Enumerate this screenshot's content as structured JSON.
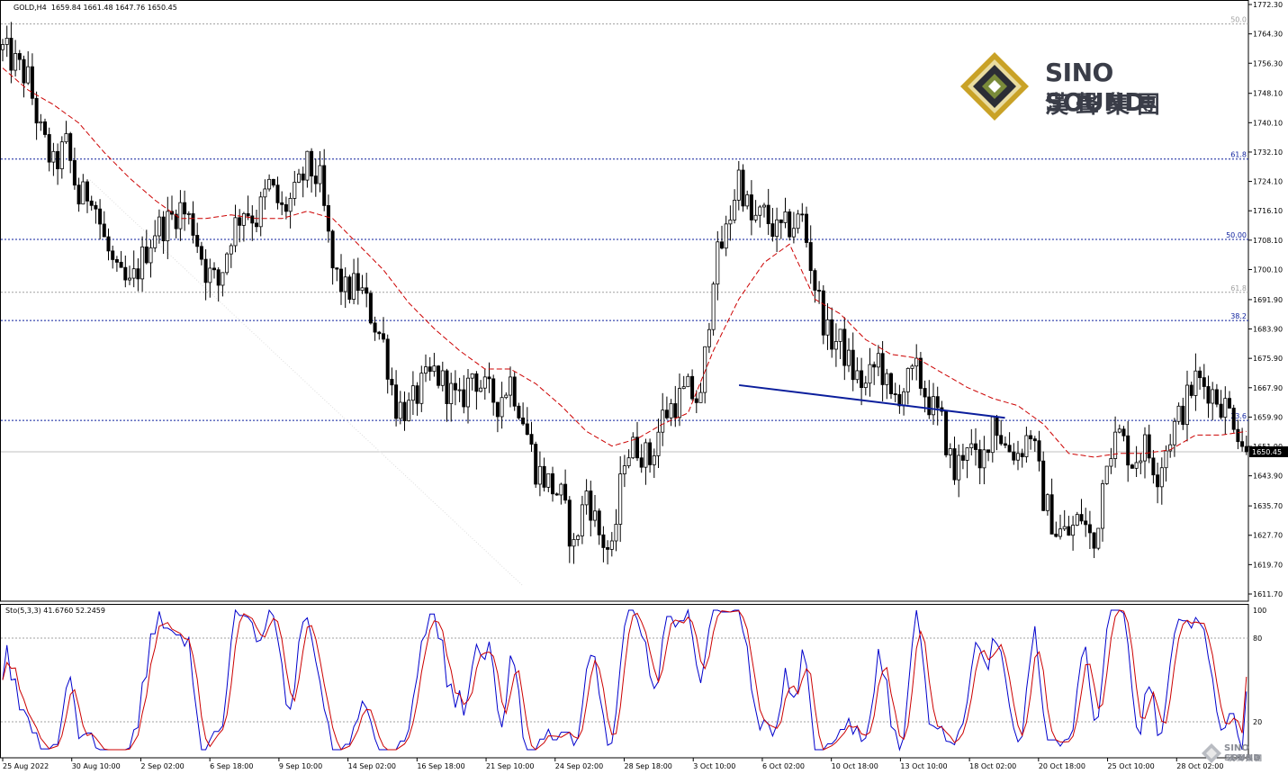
{
  "header": {
    "symbol_line": "GOLD,H4  1659.84 1661.48 1647.76 1650.45",
    "stoch_line": "Sto(5,3,3) 41.6760 52.2459"
  },
  "logo": {
    "text_en": "SINO SOUND",
    "text_zh": "漢聲集團"
  },
  "watermark": {
    "text_en": "SINO SOUND",
    "text_zh": "漢聲集團"
  },
  "colors": {
    "background": "#ffffff",
    "candle": "#000000",
    "ma": "#cc0000",
    "trendline": "#0b1e9c",
    "fib_blue": "#0b1e9c",
    "fib_gray": "#a0a0a0",
    "stoch_main": "#0000cc",
    "stoch_signal": "#cc0000",
    "logo_gold": "#c9a227",
    "logo_green": "#7a8b3a"
  },
  "chart_data": {
    "type": "candlestick",
    "symbol": "GOLD",
    "timeframe": "H4",
    "price_axis": {
      "ylim": [
        1611.7,
        1772.3
      ],
      "ticks": [
        "1772.30",
        "1764.30",
        "1756.30",
        "1748.10",
        "1740.10",
        "1732.10",
        "1724.10",
        "1716.10",
        "1708.10",
        "1700.10",
        "1691.90",
        "1683.90",
        "1675.90",
        "1667.90",
        "1659.90",
        "1651.90",
        "1643.90",
        "1635.70",
        "1627.70",
        "1619.70",
        "1611.70"
      ],
      "last_price_label": "1650.45",
      "last_price": 1650.45
    },
    "time_axis": {
      "labels": [
        "25 Aug 2022",
        "30 Aug 10:00",
        "2 Sep 02:00",
        "6 Sep 18:00",
        "9 Sep 10:00",
        "14 Sep 02:00",
        "16 Sep 18:00",
        "21 Sep 10:00",
        "24 Sep 02:00",
        "28 Sep 18:00",
        "3 Oct 10:00",
        "6 Oct 02:00",
        "10 Oct 18:00",
        "13 Oct 10:00",
        "18 Oct 02:00",
        "20 Oct 18:00",
        "25 Oct 10:00",
        "28 Oct 02:00"
      ]
    },
    "fib_levels": [
      {
        "label": "50.0",
        "price": 1767.0,
        "color": "gray"
      },
      {
        "label": "61.8",
        "price": 1730.2,
        "color": "blue"
      },
      {
        "label": "50.00",
        "price": 1708.3,
        "color": "blue"
      },
      {
        "label": "61.8",
        "price": 1693.9,
        "color": "gray"
      },
      {
        "label": "38.2",
        "price": 1686.2,
        "color": "blue"
      },
      {
        "label": "23.6",
        "price": 1659.0,
        "color": "blue"
      }
    ],
    "trendline": {
      "from": [
        1668.6,
        0.592
      ],
      "to": [
        1659.7,
        0.805
      ]
    },
    "anchors": [
      [
        0,
        1760
      ],
      [
        3,
        1756
      ],
      [
        6,
        1752
      ],
      [
        9,
        1737
      ],
      [
        12,
        1728
      ],
      [
        15,
        1734
      ],
      [
        18,
        1719
      ],
      [
        21,
        1722
      ],
      [
        24,
        1708
      ],
      [
        27,
        1698
      ],
      [
        30,
        1695
      ],
      [
        33,
        1703
      ],
      [
        36,
        1711
      ],
      [
        39,
        1713
      ],
      [
        42,
        1717
      ],
      [
        45,
        1712
      ],
      [
        48,
        1700
      ],
      [
        51,
        1696
      ],
      [
        54,
        1710
      ],
      [
        57,
        1717
      ],
      [
        60,
        1714
      ],
      [
        63,
        1723
      ],
      [
        66,
        1716
      ],
      [
        69,
        1720
      ],
      [
        72,
        1728
      ],
      [
        75,
        1724
      ],
      [
        78,
        1700
      ],
      [
        81,
        1694
      ],
      [
        84,
        1696
      ],
      [
        87,
        1688
      ],
      [
        90,
        1680
      ],
      [
        93,
        1663
      ],
      [
        96,
        1662
      ],
      [
        99,
        1668
      ],
      [
        102,
        1672
      ],
      [
        105,
        1668
      ],
      [
        108,
        1663
      ],
      [
        111,
        1672
      ],
      [
        114,
        1667
      ],
      [
        117,
        1664
      ],
      [
        120,
        1670
      ],
      [
        123,
        1660
      ],
      [
        126,
        1646
      ],
      [
        129,
        1642
      ],
      [
        132,
        1638
      ],
      [
        135,
        1624
      ],
      [
        138,
        1640
      ],
      [
        141,
        1628
      ],
      [
        144,
        1622
      ],
      [
        147,
        1650
      ],
      [
        150,
        1652
      ],
      [
        153,
        1648
      ],
      [
        156,
        1660
      ],
      [
        159,
        1664
      ],
      [
        162,
        1667
      ],
      [
        165,
        1664
      ],
      [
        168,
        1700
      ],
      [
        171,
        1710
      ],
      [
        174,
        1726
      ],
      [
        177,
        1713
      ],
      [
        180,
        1715
      ],
      [
        183,
        1710
      ],
      [
        186,
        1712
      ],
      [
        189,
        1714
      ],
      [
        192,
        1696
      ],
      [
        195,
        1682
      ],
      [
        198,
        1680
      ],
      [
        201,
        1672
      ],
      [
        204,
        1668
      ],
      [
        207,
        1676
      ],
      [
        210,
        1664
      ],
      [
        213,
        1668
      ],
      [
        216,
        1672
      ],
      [
        219,
        1664
      ],
      [
        222,
        1658
      ],
      [
        225,
        1644
      ],
      [
        228,
        1654
      ],
      [
        231,
        1644
      ],
      [
        234,
        1660
      ],
      [
        237,
        1652
      ],
      [
        240,
        1650
      ],
      [
        243,
        1656
      ],
      [
        246,
        1638
      ],
      [
        249,
        1629
      ],
      [
        252,
        1628
      ],
      [
        255,
        1633
      ],
      [
        258,
        1624
      ],
      [
        261,
        1651
      ],
      [
        264,
        1655
      ],
      [
        267,
        1648
      ],
      [
        270,
        1652
      ],
      [
        273,
        1645
      ],
      [
        276,
        1655
      ],
      [
        279,
        1662
      ],
      [
        282,
        1670
      ],
      [
        285,
        1668
      ],
      [
        288,
        1664
      ],
      [
        291,
        1660
      ],
      [
        294,
        1650
      ]
    ],
    "ma_anchors": [
      [
        0,
        1755
      ],
      [
        6,
        1749
      ],
      [
        12,
        1745
      ],
      [
        18,
        1740
      ],
      [
        24,
        1732
      ],
      [
        30,
        1725
      ],
      [
        36,
        1719
      ],
      [
        42,
        1714
      ],
      [
        48,
        1714
      ],
      [
        54,
        1715
      ],
      [
        60,
        1714
      ],
      [
        66,
        1714
      ],
      [
        72,
        1716
      ],
      [
        78,
        1714
      ],
      [
        84,
        1707
      ],
      [
        90,
        1700
      ],
      [
        96,
        1691
      ],
      [
        102,
        1684
      ],
      [
        108,
        1678
      ],
      [
        114,
        1673
      ],
      [
        120,
        1673
      ],
      [
        126,
        1669
      ],
      [
        132,
        1663
      ],
      [
        138,
        1656
      ],
      [
        144,
        1652
      ],
      [
        150,
        1654
      ],
      [
        156,
        1658
      ],
      [
        162,
        1661
      ],
      [
        168,
        1678
      ],
      [
        174,
        1692
      ],
      [
        180,
        1702
      ],
      [
        186,
        1707
      ],
      [
        192,
        1692
      ],
      [
        198,
        1688
      ],
      [
        204,
        1681
      ],
      [
        210,
        1677
      ],
      [
        216,
        1676
      ],
      [
        222,
        1672
      ],
      [
        228,
        1668
      ],
      [
        234,
        1665
      ],
      [
        240,
        1663
      ],
      [
        246,
        1658
      ],
      [
        252,
        1650
      ],
      [
        258,
        1649
      ],
      [
        264,
        1650
      ],
      [
        270,
        1650
      ],
      [
        276,
        1651
      ],
      [
        282,
        1655
      ],
      [
        288,
        1655
      ],
      [
        294,
        1656
      ]
    ],
    "bar_count": 295,
    "stoch": {
      "params": "5,3,3",
      "main": 41.676,
      "signal": 52.2459,
      "levels": [
        80,
        20
      ],
      "ylim": [
        0,
        100
      ],
      "ticks": [
        "100",
        "80",
        "20"
      ]
    }
  }
}
